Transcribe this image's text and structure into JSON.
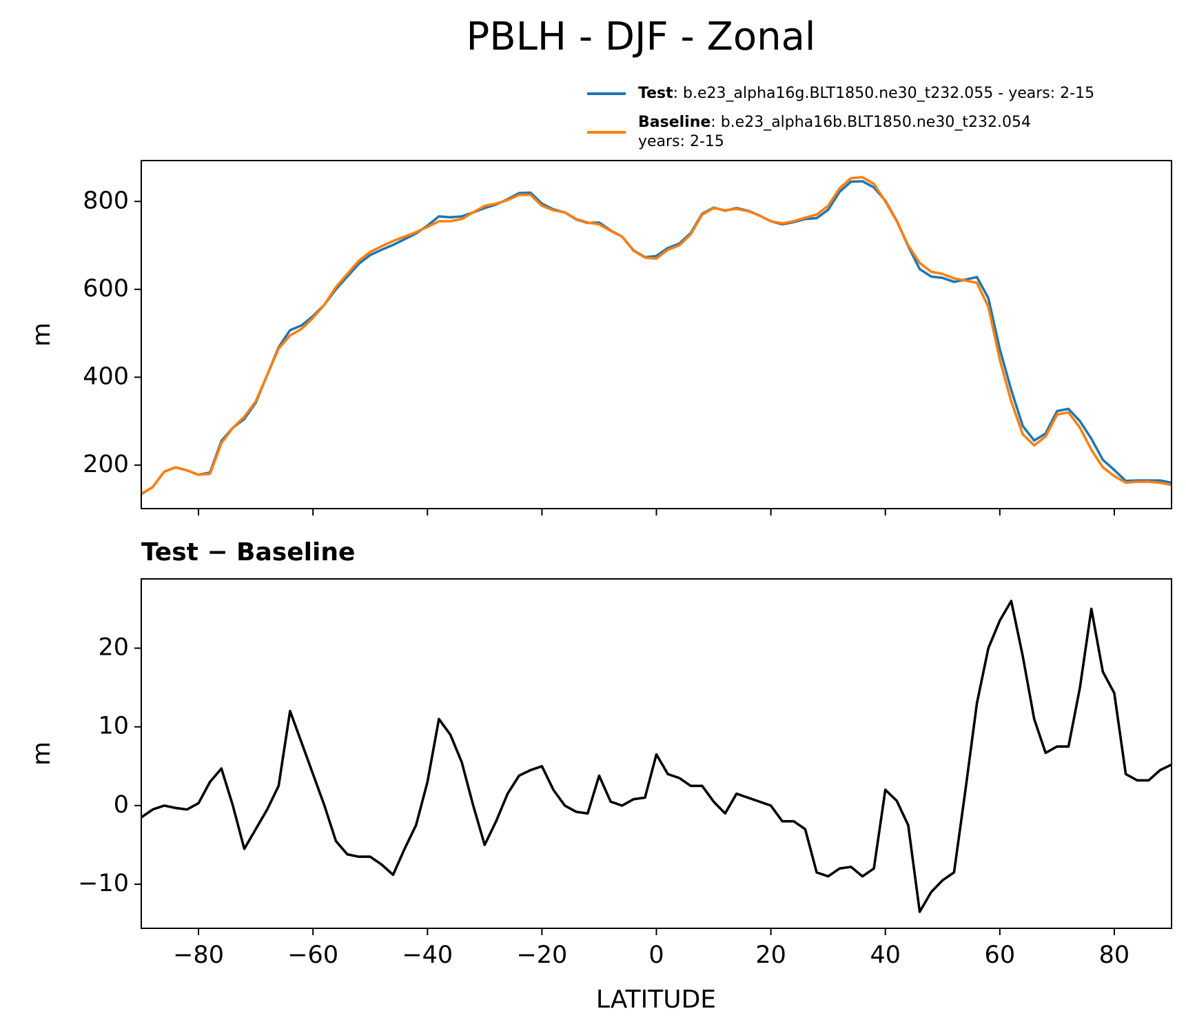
{
  "chart_data": [
    {
      "type": "line",
      "title": "PBLH - DJF - Zonal",
      "ylabel": "m",
      "x": [
        -90,
        -88,
        -86,
        -84,
        -82,
        -80,
        -78,
        -76,
        -74,
        -72,
        -70,
        -68,
        -66,
        -64,
        -62,
        -60,
        -58,
        -56,
        -54,
        -52,
        -50,
        -48,
        -46,
        -44,
        -42,
        -40,
        -38,
        -36,
        -34,
        -32,
        -30,
        -28,
        -26,
        -24,
        -22,
        -20,
        -18,
        -16,
        -14,
        -12,
        -10,
        -8,
        -6,
        -4,
        -2,
        0,
        2,
        4,
        6,
        8,
        10,
        12,
        14,
        16,
        18,
        20,
        22,
        24,
        26,
        28,
        30,
        32,
        34,
        36,
        38,
        40,
        42,
        44,
        46,
        48,
        50,
        52,
        54,
        56,
        58,
        60,
        62,
        64,
        66,
        68,
        70,
        72,
        74,
        76,
        78,
        80,
        82,
        84,
        86,
        88,
        90
      ],
      "series": [
        {
          "name": "Test",
          "description": [
            ": b.e23_alpha16g.BLT1850.ne30_t232.055 - years: 2-15"
          ],
          "color": "#1f77b4",
          "values": [
            134,
            150,
            185,
            195,
            188,
            178,
            183,
            255,
            285,
            305,
            342,
            405,
            468,
            507,
            518,
            539,
            565,
            600,
            629,
            658,
            678,
            690,
            701,
            714,
            727,
            745,
            766,
            764,
            766,
            775,
            785,
            793,
            805,
            819,
            820,
            795,
            782,
            775,
            759,
            751,
            752,
            734,
            720,
            689,
            673,
            676,
            694,
            704,
            728,
            772,
            786,
            779,
            785,
            779,
            768,
            755,
            748,
            753,
            760,
            762,
            781,
            822,
            845,
            846,
            832,
            802,
            756,
            698,
            646,
            629,
            626,
            617,
            622,
            628,
            580,
            464,
            371,
            289,
            256,
            272,
            323,
            328,
            300,
            260,
            212,
            189,
            164,
            165,
            165,
            165,
            160
          ]
        },
        {
          "name": "Baseline",
          "description": [
            ": b.e23_alpha16b.BLT1850.ne30_t232.054",
            "years: 2-15"
          ],
          "color": "#ff7f0e",
          "values": [
            135,
            150,
            185,
            195,
            188,
            178,
            180,
            250,
            285,
            310,
            345,
            405,
            465,
            495,
            510,
            535,
            565,
            605,
            635,
            665,
            685,
            698,
            710,
            720,
            730,
            742,
            755,
            755,
            760,
            775,
            790,
            795,
            803,
            815,
            815,
            790,
            780,
            775,
            760,
            752,
            748,
            733,
            720,
            688,
            672,
            670,
            690,
            700,
            725,
            770,
            785,
            780,
            783,
            778,
            768,
            755,
            750,
            755,
            763,
            770,
            790,
            830,
            853,
            855,
            840,
            800,
            755,
            700,
            660,
            640,
            635,
            625,
            620,
            615,
            560,
            440,
            345,
            270,
            245,
            265,
            315,
            320,
            285,
            235,
            195,
            175,
            160,
            162,
            162,
            160,
            155
          ]
        }
      ],
      "xlim": [
        -90,
        90
      ],
      "xticks": [
        -80,
        -60,
        -40,
        -20,
        0,
        20,
        40,
        60,
        80
      ],
      "ylim": [
        101,
        893
      ],
      "yticks": [
        200,
        400,
        600,
        800
      ]
    },
    {
      "type": "line",
      "title": "Test − Baseline",
      "xlabel": "LATITUDE",
      "ylabel": "m",
      "x": [
        -90,
        -88,
        -86,
        -84,
        -82,
        -80,
        -78,
        -76,
        -74,
        -72,
        -70,
        -68,
        -66,
        -64,
        -62,
        -60,
        -58,
        -56,
        -54,
        -52,
        -50,
        -48,
        -46,
        -44,
        -42,
        -40,
        -38,
        -36,
        -34,
        -32,
        -30,
        -28,
        -26,
        -24,
        -22,
        -20,
        -18,
        -16,
        -14,
        -12,
        -10,
        -8,
        -6,
        -4,
        -2,
        0,
        2,
        4,
        6,
        8,
        10,
        12,
        14,
        16,
        18,
        20,
        22,
        24,
        26,
        28,
        30,
        32,
        34,
        36,
        38,
        40,
        42,
        44,
        46,
        48,
        50,
        52,
        54,
        56,
        58,
        60,
        62,
        64,
        66,
        68,
        70,
        72,
        74,
        76,
        78,
        80,
        82,
        84,
        86,
        88,
        90
      ],
      "series": [
        {
          "color": "#000000",
          "values": [
            -1.5,
            -0.5,
            0,
            -0.3,
            -0.5,
            0.3,
            3,
            4.7,
            0,
            -5.5,
            -3,
            -0.5,
            2.5,
            12,
            8,
            4,
            0,
            -4.5,
            -6.2,
            -6.5,
            -6.5,
            -7.5,
            -8.8,
            -5.5,
            -2.5,
            3,
            11,
            9,
            5.5,
            0,
            -5,
            -2,
            1.5,
            3.8,
            4.5,
            5,
            2,
            0,
            -0.8,
            -1,
            3.8,
            0.5,
            0,
            0.8,
            1,
            6.5,
            4,
            3.5,
            2.5,
            2.5,
            0.5,
            -1,
            1.5,
            1,
            0.5,
            0,
            -2,
            -2,
            -3,
            -8.5,
            -9,
            -8,
            -7.8,
            -9,
            -8,
            2,
            0.6,
            -2.5,
            -13.5,
            -11,
            -9.5,
            -8.5,
            2,
            13,
            20,
            23.5,
            26,
            19,
            11,
            6.7,
            7.5,
            7.5,
            15,
            25,
            17,
            14.3,
            4,
            3.2,
            3.2,
            4.5,
            5.2
          ]
        }
      ],
      "xlim": [
        -90,
        90
      ],
      "xticks": [
        {
          "value": -80,
          "label": "−80"
        },
        {
          "value": -60,
          "label": "−60"
        },
        {
          "value": -40,
          "label": "−40"
        },
        {
          "value": -20,
          "label": "−20"
        },
        0,
        20,
        40,
        60,
        80
      ],
      "ylim": [
        -15.6,
        28.8
      ],
      "yticks": [
        {
          "value": -10,
          "label": "−10"
        },
        0,
        10,
        20
      ]
    }
  ]
}
